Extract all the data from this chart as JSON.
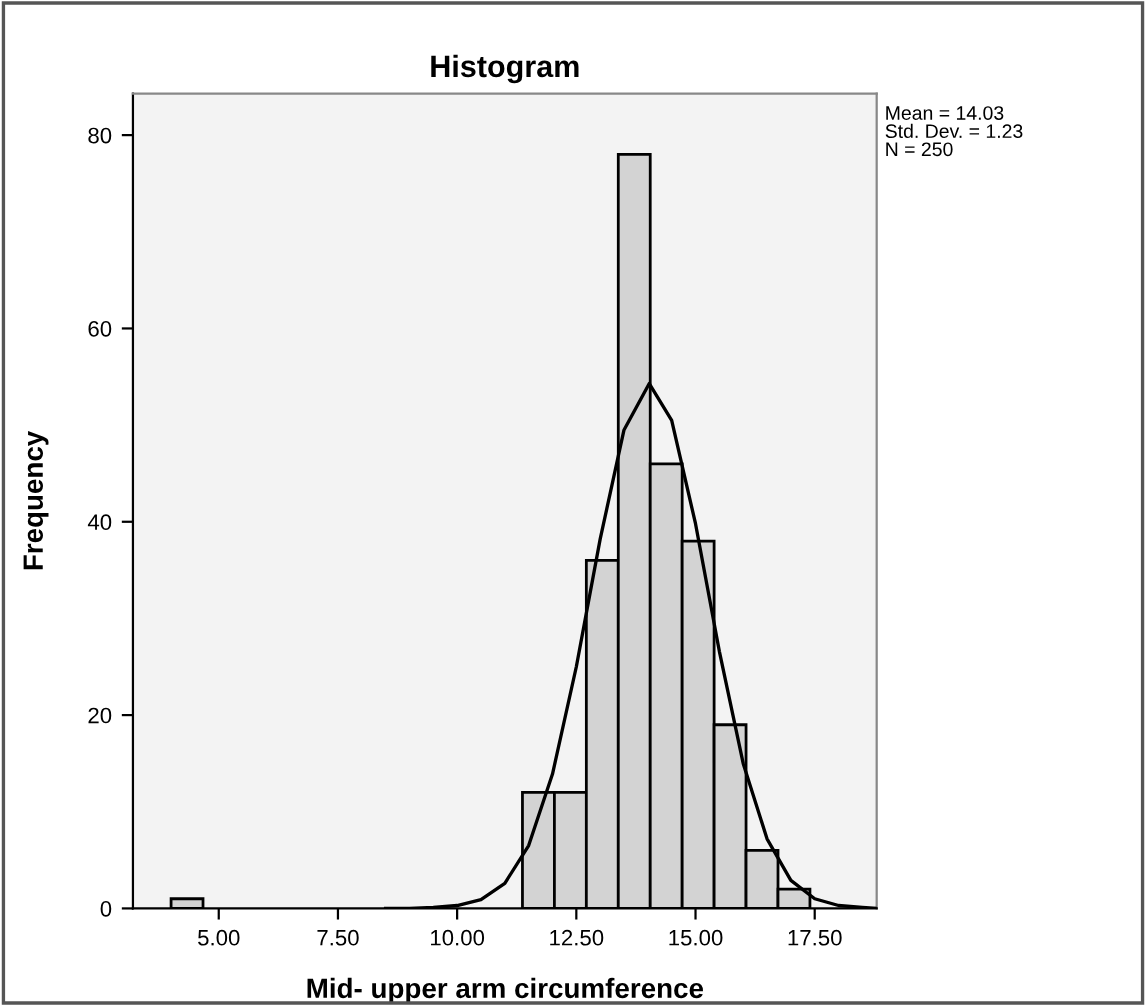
{
  "chart_data": {
    "type": "histogram",
    "title": "Histogram",
    "xlabel": "Mid- upper arm circumference",
    "ylabel": "Frequency",
    "bins": [
      4.0,
      4.67,
      5.34,
      6.01,
      6.68,
      7.35,
      8.02,
      8.69,
      9.36,
      10.03,
      10.7,
      11.37,
      12.04,
      12.71,
      13.38,
      14.05,
      14.72,
      15.39,
      16.06,
      16.73,
      17.4
    ],
    "values": [
      1,
      0,
      0,
      0,
      0,
      0,
      0,
      0,
      0,
      0,
      0,
      12,
      12,
      36,
      78,
      46,
      38,
      19,
      6,
      2
    ],
    "color": "#d3d3d3",
    "series": [
      {
        "type": "line",
        "color": "#000000",
        "x": [
          8.5,
          9.0,
          9.5,
          10.0,
          10.5,
          11.0,
          11.5,
          12.0,
          12.5,
          13.0,
          13.5,
          14.03,
          14.5,
          15.0,
          15.5,
          16.0,
          16.5,
          17.0,
          17.5,
          18.0,
          18.5,
          18.8
        ],
        "values": [
          0.0,
          0.0,
          0.1,
          0.3,
          0.9,
          2.6,
          6.5,
          13.9,
          25.0,
          38.2,
          49.5,
          54.3,
          50.5,
          39.8,
          26.6,
          15.0,
          7.2,
          2.9,
          1.0,
          0.3,
          0.1,
          0.0
        ]
      }
    ],
    "xlim": [
      3.2,
      18.8
    ],
    "ylim": [
      0,
      84.3
    ],
    "xticks": [
      {
        "value": 5,
        "label": "5.00"
      },
      {
        "value": 7.5,
        "label": "7.50"
      },
      {
        "value": 10,
        "label": "10.00"
      },
      {
        "value": 12.5,
        "label": "12.50"
      },
      {
        "value": 15,
        "label": "15.00"
      },
      {
        "value": 17.5,
        "label": "17.50"
      }
    ],
    "yticks": [
      0,
      20,
      40,
      60,
      80
    ],
    "annotations": [
      "Mean = 14.03\nStd. Dev. = 1.23\nN = 250"
    ],
    "grid": false,
    "legend": false
  }
}
